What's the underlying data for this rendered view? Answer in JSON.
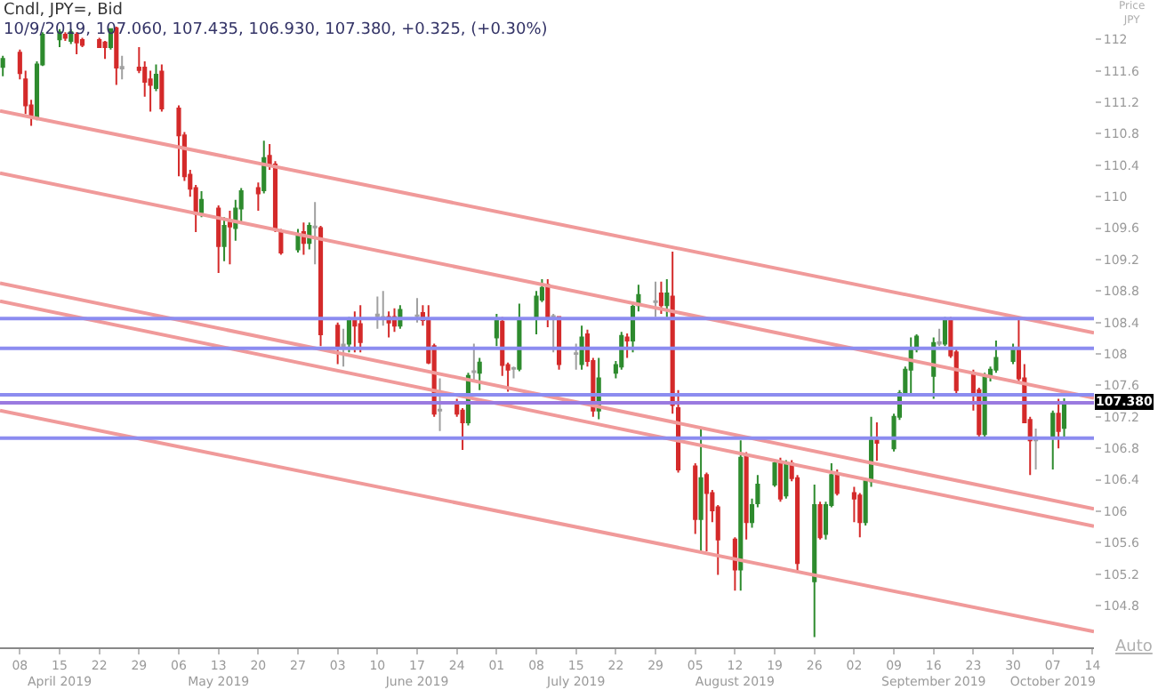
{
  "chart_data": {
    "type": "candlestick",
    "title": "Cndl, JPY=, Bid",
    "subtitle": "10/9/2019, 107.060, 107.435, 106.930, 107.380, +0.325, (+0.30%)",
    "ylabel": "Price\nJPY",
    "annotations": [
      "Auto"
    ],
    "colors": [
      "#2e8b2e",
      "#d42a2a",
      "#d42a2a",
      "#d42a2a",
      "#2e8b2e",
      "#2e8b2e",
      "#2e8b2e",
      "#d42a2a",
      "#2e8b2e",
      "#d42a2a",
      "#d42a2a",
      "#d42a2a",
      "#d42a2a",
      "#2e8b2e",
      "#d42a2a",
      "#a0a0a0",
      "#d42a2a",
      "#d42a2a",
      "#d42a2a",
      "#2e8b2e",
      "#d42a2a",
      "#d42a2a",
      "#d42a2a",
      "#d42a2a",
      "#d42a2a",
      "#2e8b2e",
      "#d42a2a",
      "#2e8b2e",
      "#d42a2a",
      "#2e8b2e",
      "#2e8b2e",
      "#d42a2a",
      "#2e8b2e",
      "#d42a2a",
      "#d42a2a",
      "#d42a2a",
      "#2e8b2e",
      "#d42a2a",
      "#2e8b2e",
      "#a0a0a0",
      "#d42a2a",
      "#d42a2a",
      "#a0a0a0",
      "#2e8b2e",
      "#d42a2a",
      "#d42a2a",
      "#a0a0a0",
      "#a0a0a0",
      "#d42a2a",
      "#d42a2a",
      "#2e8b2e",
      "#a0a0a0",
      "#d42a2a",
      "#d42a2a",
      "#d42a2a",
      "#a0a0a0",
      "#d42a2a",
      "#d42a2a",
      "#2e8b2e",
      "#a0a0a0",
      "#2e8b2e",
      "#2e8b2e",
      "#d42a2a",
      "#d42a2a",
      "#a0a0a0",
      "#2e8b2e",
      "#2e8b2e",
      "#2e8b2e",
      "#d42a2a",
      "#a0a0a0",
      "#d42a2a",
      "#a0a0a0",
      "#2e8b2e",
      "#d42a2a",
      "#d42a2a",
      "#2e8b2e",
      "#2e8b2e",
      "#2e8b2e",
      "#d42a2a",
      "#2e8b2e",
      "#2e8b2e",
      "#a0a0a0",
      "#d42a2a",
      "#2e8b2e",
      "#d42a2a",
      "#d42a2a",
      "#d42a2a",
      "#2e8b2e",
      "#d42a2a",
      "#d42a2a",
      "#d42a2a",
      "#d42a2a",
      "#2e8b2e",
      "#d42a2a",
      "#2e8b2e",
      "#2e8b2e",
      "#2e8b2e",
      "#d42a2a",
      "#2e8b2e",
      "#d42a2a",
      "#d42a2a",
      "#2e8b2e",
      "#d42a2a",
      "#2e8b2e",
      "#2e8b2e",
      "#d42a2a",
      "#d42a2a",
      "#d42a2a",
      "#2e8b2e",
      "#2e8b2e",
      "#d42a2a",
      "#2e8b2e",
      "#2e8b2e",
      "#2e8b2e",
      "#2e8b2e",
      "#2e8b2e",
      "#2e8b2e",
      "#a0a0a0",
      "#2e8b2e",
      "#d42a2a",
      "#d42a2a",
      "#d42a2a",
      "#d42a2a",
      "#2e8b2e",
      "#2e8b2e",
      "#2e8b2e",
      "#2e8b2e",
      "#d42a2a",
      "#d42a2a",
      "#d42a2a",
      "#a0a0a0",
      "#2e8b2e",
      "#d42a2a",
      "#2e8b2e"
    ],
    "x": [
      "2019-04-05",
      "2019-04-08",
      "2019-04-09",
      "2019-04-10",
      "2019-04-11",
      "2019-04-12",
      "2019-04-15",
      "2019-04-16",
      "2019-04-17",
      "2019-04-18",
      "2019-04-19",
      "2019-04-22",
      "2019-04-23",
      "2019-04-24",
      "2019-04-25",
      "2019-04-26",
      "2019-04-29",
      "2019-04-30",
      "2019-05-01",
      "2019-05-02",
      "2019-05-03",
      "2019-05-06",
      "2019-05-07",
      "2019-05-08",
      "2019-05-09",
      "2019-05-10",
      "2019-05-13",
      "2019-05-14",
      "2019-05-15",
      "2019-05-16",
      "2019-05-17",
      "2019-05-20",
      "2019-05-21",
      "2019-05-22",
      "2019-05-23",
      "2019-05-24",
      "2019-05-27",
      "2019-05-28",
      "2019-05-29",
      "2019-05-30",
      "2019-05-31",
      "2019-06-03",
      "2019-06-04",
      "2019-06-05",
      "2019-06-06",
      "2019-06-07",
      "2019-06-10",
      "2019-06-11",
      "2019-06-12",
      "2019-06-13",
      "2019-06-14",
      "2019-06-17",
      "2019-06-18",
      "2019-06-19",
      "2019-06-20",
      "2019-06-21",
      "2019-06-24",
      "2019-06-25",
      "2019-06-26",
      "2019-06-27",
      "2019-06-28",
      "2019-07-01",
      "2019-07-02",
      "2019-07-03",
      "2019-07-04",
      "2019-07-05",
      "2019-07-08",
      "2019-07-09",
      "2019-07-10",
      "2019-07-11",
      "2019-07-12",
      "2019-07-15",
      "2019-07-16",
      "2019-07-17",
      "2019-07-18",
      "2019-07-19",
      "2019-07-22",
      "2019-07-23",
      "2019-07-24",
      "2019-07-25",
      "2019-07-26",
      "2019-07-29",
      "2019-07-30",
      "2019-07-31",
      "2019-08-01",
      "2019-08-02",
      "2019-08-05",
      "2019-08-06",
      "2019-08-07",
      "2019-08-08",
      "2019-08-09",
      "2019-08-12",
      "2019-08-13",
      "2019-08-14",
      "2019-08-15",
      "2019-08-16",
      "2019-08-19",
      "2019-08-20",
      "2019-08-21",
      "2019-08-22",
      "2019-08-23",
      "2019-08-26",
      "2019-08-27",
      "2019-08-28",
      "2019-08-29",
      "2019-08-30",
      "2019-09-02",
      "2019-09-03",
      "2019-09-04",
      "2019-09-05",
      "2019-09-06",
      "2019-09-09",
      "2019-09-10",
      "2019-09-11",
      "2019-09-12",
      "2019-09-13",
      "2019-09-16",
      "2019-09-17",
      "2019-09-18",
      "2019-09-19",
      "2019-09-20",
      "2019-09-23",
      "2019-09-24",
      "2019-09-25",
      "2019-09-26",
      "2019-09-27",
      "2019-09-30",
      "2019-10-01",
      "2019-10-02",
      "2019-10-03",
      "2019-10-04",
      "2019-10-07",
      "2019-10-08",
      "2019-10-09"
    ],
    "ohlc": [
      [
        111.65,
        111.79,
        111.53,
        111.75
      ],
      [
        111.83,
        111.87,
        111.49,
        111.57
      ],
      [
        111.49,
        111.6,
        111.05,
        111.16
      ],
      [
        111.16,
        111.23,
        110.9,
        111.02
      ],
      [
        111.02,
        111.72,
        110.97,
        111.68
      ],
      [
        111.68,
        112.09,
        111.66,
        112.06
      ],
      [
        112.0,
        112.13,
        111.9,
        112.09
      ],
      [
        112.06,
        112.09,
        111.98,
        112.02
      ],
      [
        111.98,
        112.13,
        111.94,
        112.09
      ],
      [
        112.06,
        112.09,
        111.81,
        111.96
      ],
      [
        111.99,
        112.02,
        111.9,
        111.93
      ],
      [
        111.99,
        112.02,
        111.89,
        111.9
      ],
      [
        111.96,
        111.98,
        111.75,
        111.9
      ],
      [
        111.9,
        112.14,
        111.87,
        112.13
      ],
      [
        112.14,
        112.16,
        111.42,
        111.64
      ],
      [
        111.65,
        111.79,
        111.49,
        111.63
      ],
      [
        111.64,
        111.9,
        111.57,
        111.61
      ],
      [
        111.64,
        111.72,
        111.27,
        111.46
      ],
      [
        111.49,
        111.6,
        111.08,
        111.42
      ],
      [
        111.38,
        111.68,
        111.34,
        111.55
      ],
      [
        111.59,
        111.68,
        111.08,
        111.12
      ],
      [
        111.12,
        111.16,
        110.26,
        110.78
      ],
      [
        110.78,
        110.82,
        110.2,
        110.26
      ],
      [
        110.28,
        110.34,
        110.0,
        110.1
      ],
      [
        110.11,
        110.15,
        109.55,
        109.78
      ],
      [
        109.8,
        110.07,
        109.74,
        109.96
      ],
      [
        109.85,
        109.89,
        109.03,
        109.37
      ],
      [
        109.37,
        109.74,
        109.18,
        109.63
      ],
      [
        109.67,
        109.82,
        109.14,
        109.62
      ],
      [
        109.6,
        109.96,
        109.44,
        109.85
      ],
      [
        109.85,
        110.11,
        109.67,
        110.07
      ],
      [
        110.11,
        110.18,
        109.82,
        110.04
      ],
      [
        110.08,
        110.71,
        110.04,
        110.49
      ],
      [
        110.52,
        110.67,
        110.34,
        110.41
      ],
      [
        110.41,
        110.45,
        109.55,
        109.59
      ],
      [
        109.56,
        109.59,
        109.26,
        109.29
      ],
      [
        109.33,
        109.59,
        109.29,
        109.52
      ],
      [
        109.55,
        109.67,
        109.26,
        109.41
      ],
      [
        109.41,
        109.67,
        109.33,
        109.63
      ],
      [
        109.62,
        109.93,
        109.14,
        109.61
      ],
      [
        109.6,
        109.63,
        108.1,
        108.25
      ],
      [
        108.36,
        108.4,
        107.87,
        108.1
      ],
      [
        108.12,
        108.32,
        107.84,
        108.1
      ],
      [
        108.13,
        108.47,
        108.02,
        108.43
      ],
      [
        108.43,
        108.54,
        108.02,
        108.36
      ],
      [
        108.38,
        108.62,
        108.02,
        108.15
      ],
      [
        108.48,
        108.73,
        108.32,
        108.5
      ],
      [
        108.47,
        108.8,
        108.36,
        108.45
      ],
      [
        108.47,
        108.54,
        108.21,
        108.4
      ],
      [
        108.47,
        108.58,
        108.28,
        108.36
      ],
      [
        108.36,
        108.62,
        108.32,
        108.56
      ],
      [
        108.49,
        108.71,
        108.4,
        108.48
      ],
      [
        108.52,
        108.62,
        108.36,
        108.43
      ],
      [
        108.43,
        108.62,
        107.87,
        107.89
      ],
      [
        108.1,
        108.13,
        107.2,
        107.24
      ],
      [
        107.29,
        107.69,
        107.02,
        107.28
      ],
      [
        107.35,
        107.43,
        107.2,
        107.24
      ],
      [
        107.28,
        107.31,
        106.78,
        107.13
      ],
      [
        107.13,
        107.76,
        107.09,
        107.72
      ],
      [
        107.78,
        108.13,
        107.65,
        107.77
      ],
      [
        107.76,
        107.95,
        107.54,
        107.89
      ],
      [
        108.21,
        108.51,
        108.1,
        108.43
      ],
      [
        108.41,
        108.47,
        107.72,
        107.86
      ],
      [
        107.86,
        107.89,
        107.52,
        107.8
      ],
      [
        107.82,
        107.84,
        107.69,
        107.81
      ],
      [
        107.81,
        108.64,
        107.78,
        108.43
      ],
      [
        108.47,
        108.8,
        108.25,
        108.73
      ],
      [
        108.69,
        108.95,
        108.66,
        108.84
      ],
      [
        108.88,
        108.95,
        108.34,
        108.47
      ],
      [
        108.48,
        108.51,
        108.02,
        108.47
      ],
      [
        108.47,
        108.47,
        107.8,
        107.87
      ],
      [
        108.0,
        108.13,
        107.8,
        108.01
      ],
      [
        107.87,
        108.36,
        107.8,
        108.21
      ],
      [
        108.25,
        108.31,
        107.84,
        107.91
      ],
      [
        107.91,
        107.95,
        107.2,
        107.28
      ],
      [
        107.28,
        107.95,
        107.17,
        107.69
      ],
      [
        107.76,
        107.91,
        107.69,
        107.86
      ],
      [
        107.84,
        108.28,
        107.8,
        108.23
      ],
      [
        108.21,
        108.26,
        107.95,
        108.17
      ],
      [
        108.17,
        108.66,
        108.02,
        108.6
      ],
      [
        108.62,
        108.88,
        108.54,
        108.75
      ],
      [
        108.66,
        108.92,
        108.47,
        108.67
      ],
      [
        108.77,
        108.92,
        108.51,
        108.62
      ],
      [
        108.62,
        108.95,
        108.47,
        108.77
      ],
      [
        108.73,
        109.3,
        107.24,
        107.35
      ],
      [
        107.31,
        107.54,
        106.49,
        106.53
      ],
      [
        106.57,
        106.61,
        105.71,
        105.9
      ],
      [
        105.9,
        107.05,
        105.49,
        106.42
      ],
      [
        106.46,
        106.49,
        105.49,
        106.23
      ],
      [
        106.23,
        106.27,
        105.86,
        106.01
      ],
      [
        106.05,
        106.08,
        105.19,
        105.64
      ],
      [
        105.64,
        105.67,
        104.99,
        105.26
      ],
      [
        105.26,
        106.9,
        104.99,
        106.68
      ],
      [
        106.72,
        106.75,
        105.64,
        105.86
      ],
      [
        105.86,
        106.16,
        105.79,
        106.08
      ],
      [
        106.1,
        106.46,
        106.05,
        106.34
      ],
      [
        106.34,
        106.65,
        106.31,
        106.61
      ],
      [
        106.61,
        106.68,
        106.12,
        106.16
      ],
      [
        106.2,
        106.65,
        106.16,
        106.61
      ],
      [
        106.61,
        106.65,
        106.38,
        106.42
      ],
      [
        106.42,
        106.46,
        105.23,
        105.34
      ],
      [
        105.11,
        106.34,
        104.4,
        106.08
      ],
      [
        106.08,
        106.12,
        105.64,
        105.67
      ],
      [
        105.71,
        106.12,
        105.64,
        106.08
      ],
      [
        106.08,
        106.61,
        106.05,
        106.46
      ],
      [
        106.46,
        106.53,
        106.2,
        106.23
      ],
      [
        106.23,
        106.31,
        105.86,
        106.16
      ],
      [
        106.2,
        106.23,
        105.67,
        105.86
      ],
      [
        105.86,
        106.42,
        105.82,
        106.38
      ],
      [
        106.38,
        107.2,
        106.31,
        106.9
      ],
      [
        106.9,
        107.13,
        106.64,
        106.87
      ],
      [
        106.8,
        107.24,
        106.76,
        107.2
      ],
      [
        107.2,
        107.54,
        107.16,
        107.5
      ],
      [
        107.5,
        107.84,
        107.46,
        107.8
      ],
      [
        107.8,
        108.21,
        107.5,
        108.06
      ],
      [
        108.06,
        108.25,
        108.02,
        108.22
      ],
      [
        107.72,
        108.21,
        107.43,
        108.14
      ],
      [
        108.13,
        108.32,
        108.1,
        108.15
      ],
      [
        108.13,
        108.47,
        108.1,
        108.43
      ],
      [
        108.43,
        108.47,
        107.95,
        107.98
      ],
      [
        108.02,
        108.06,
        107.5,
        107.54
      ],
      [
        107.76,
        107.8,
        107.28,
        107.5
      ],
      [
        107.54,
        107.57,
        106.94,
        106.98
      ],
      [
        106.98,
        107.76,
        106.94,
        107.72
      ],
      [
        107.72,
        107.84,
        107.65,
        107.8
      ],
      [
        107.8,
        108.17,
        107.76,
        107.95
      ],
      [
        107.91,
        108.13,
        107.87,
        108.06
      ],
      [
        108.06,
        108.43,
        107.65,
        107.69
      ],
      [
        107.69,
        107.87,
        107.13,
        107.13
      ],
      [
        107.16,
        107.2,
        106.46,
        106.9
      ],
      [
        106.9,
        107.05,
        106.53,
        106.91
      ],
      [
        106.94,
        107.28,
        106.53,
        107.24
      ],
      [
        107.24,
        107.43,
        106.8,
        107.02
      ],
      [
        107.06,
        107.435,
        106.93,
        107.38
      ]
    ],
    "series": [
      {
        "type": "line",
        "color": "#f09a9a",
        "x": [
          "2019-04-04T12:00",
          "2019-10-14T06:00"
        ],
        "values": [
          111.09,
          108.27
        ]
      },
      {
        "type": "line",
        "color": "#f09a9a",
        "x": [
          "2019-04-04T12:00",
          "2019-10-14T06:00"
        ],
        "values": [
          110.3,
          107.44
        ]
      },
      {
        "type": "line",
        "color": "#f09a9a",
        "x": [
          "2019-04-04T12:00",
          "2019-10-14T06:00"
        ],
        "values": [
          108.9,
          106.03
        ]
      },
      {
        "type": "line",
        "color": "#f09a9a",
        "x": [
          "2019-04-04T12:00",
          "2019-10-14T06:00"
        ],
        "values": [
          108.67,
          105.81
        ]
      },
      {
        "type": "line",
        "color": "#f09a9a",
        "x": [
          "2019-04-04T12:00",
          "2019-10-14T06:00"
        ],
        "values": [
          107.28,
          104.47
        ]
      }
    ],
    "ref_lines": [
      {
        "axis": "y",
        "value": 108.45,
        "color": "#8c8cf0"
      },
      {
        "axis": "y",
        "value": 108.07,
        "color": "#8c8cf0"
      },
      {
        "axis": "y",
        "value": 107.48,
        "color": "#8c8cf0"
      },
      {
        "axis": "y",
        "value": 107.38,
        "color": "#9a7ae0",
        "label": "107.380"
      },
      {
        "axis": "y",
        "value": 106.93,
        "color": "#8c8cf0"
      }
    ],
    "xlim": [
      "2019-04-04T12:00",
      "2019-10-14T06:00"
    ],
    "xticks": [
      {
        "value": "2019-04-08",
        "label": "08"
      },
      {
        "value": "2019-04-15",
        "label": "15\nApril 2019"
      },
      {
        "value": "2019-04-22",
        "label": "22"
      },
      {
        "value": "2019-04-29",
        "label": "29"
      },
      {
        "value": "2019-05-06",
        "label": "06"
      },
      {
        "value": "2019-05-13",
        "label": "13\nMay 2019"
      },
      {
        "value": "2019-05-20",
        "label": "20"
      },
      {
        "value": "2019-05-27",
        "label": "27"
      },
      {
        "value": "2019-06-03",
        "label": "03"
      },
      {
        "value": "2019-06-10",
        "label": "10"
      },
      {
        "value": "2019-06-17",
        "label": "17\nJune 2019"
      },
      {
        "value": "2019-06-24",
        "label": "24"
      },
      {
        "value": "2019-07-01",
        "label": "01"
      },
      {
        "value": "2019-07-08",
        "label": "08"
      },
      {
        "value": "2019-07-15",
        "label": "15\nJuly 2019"
      },
      {
        "value": "2019-07-22",
        "label": "22"
      },
      {
        "value": "2019-07-29",
        "label": "29"
      },
      {
        "value": "2019-08-05",
        "label": "05"
      },
      {
        "value": "2019-08-12",
        "label": "12\nAugust 2019"
      },
      {
        "value": "2019-08-19",
        "label": "19"
      },
      {
        "value": "2019-08-26",
        "label": "26"
      },
      {
        "value": "2019-09-02",
        "label": "02"
      },
      {
        "value": "2019-09-09",
        "label": "09"
      },
      {
        "value": "2019-09-16",
        "label": "16\nSeptember 2019"
      },
      {
        "value": "2019-09-23",
        "label": "23"
      },
      {
        "value": "2019-09-30",
        "label": "30"
      },
      {
        "value": "2019-10-07",
        "label": "07\nOctober 2019"
      },
      {
        "value": "2019-10-14",
        "label": "14"
      }
    ],
    "ylim": [
      104.27,
      112.5
    ],
    "yticks": [
      104.8,
      105.2,
      105.6,
      106,
      106.4,
      106.8,
      107.2,
      107.6,
      108,
      108.4,
      108.8,
      109.2,
      109.6,
      110,
      110.4,
      110.8,
      111.2,
      111.6,
      112
    ]
  }
}
